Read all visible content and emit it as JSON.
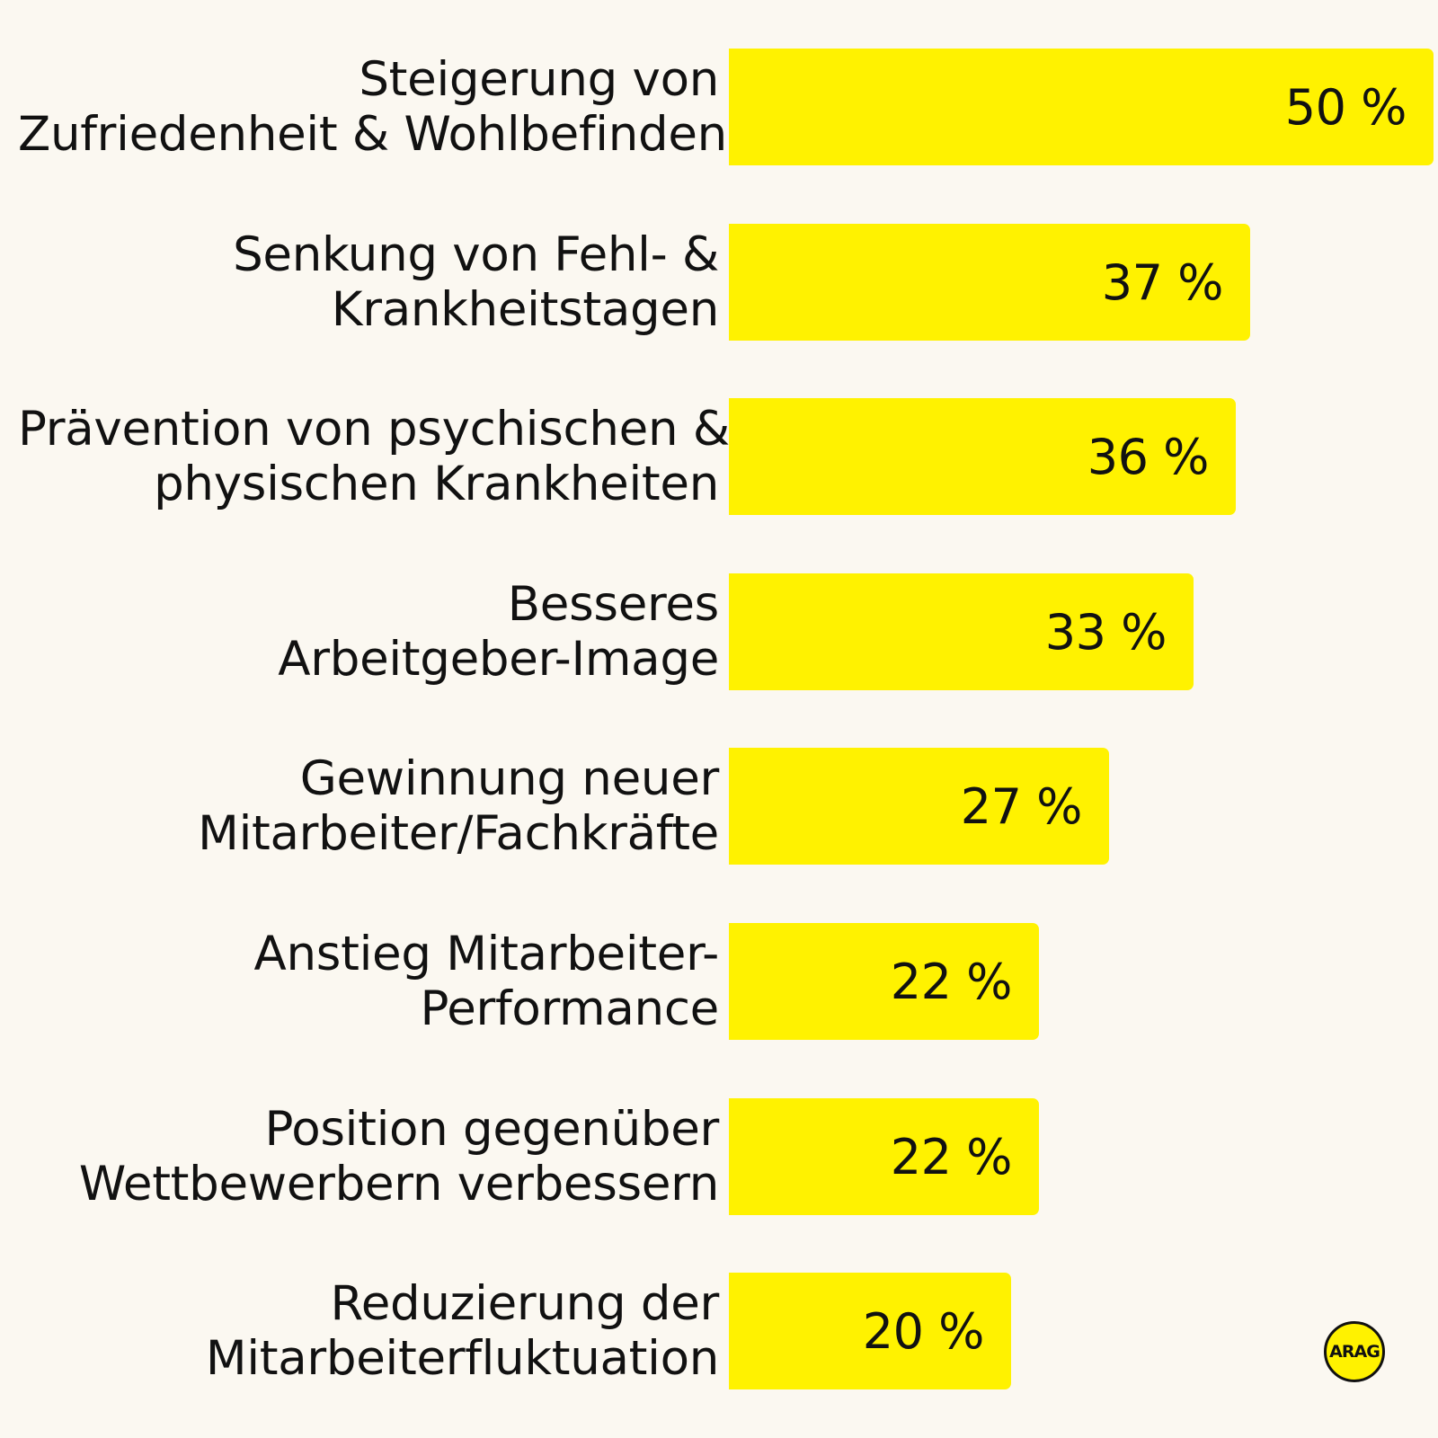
{
  "colors": {
    "background": "#fbf8f1",
    "bar": "#fff200",
    "text": "#111111",
    "logo_fill": "#fff200"
  },
  "logo": {
    "text": "ARAG"
  },
  "chart_data": {
    "type": "bar",
    "orientation": "horizontal",
    "unit": "%",
    "xlim": [
      0,
      50
    ],
    "grid": false,
    "legend": "none",
    "title": "",
    "xlabel": "",
    "ylabel": "",
    "categories": [
      [
        "Steigerung von",
        "Zufriedenheit & Wohlbefinden"
      ],
      [
        "Senkung von Fehl- &",
        "Krankheitstagen"
      ],
      [
        "Prävention von psychischen &",
        "physischen Krankheiten"
      ],
      [
        "Besseres",
        "Arbeitgeber-Image"
      ],
      [
        "Gewinnung neuer",
        "Mitarbeiter/Fachkräfte"
      ],
      [
        "Anstieg Mitarbeiter-",
        "Performance"
      ],
      [
        "Position gegenüber",
        "Wettbewerbern verbessern"
      ],
      [
        "Reduzierung der",
        "Mitarbeiterfluktuation"
      ]
    ],
    "values": [
      50,
      37,
      36,
      33,
      27,
      22,
      22,
      20
    ],
    "value_labels": [
      "50 %",
      "37 %",
      "36 %",
      "33 %",
      "27 %",
      "22 %",
      "22 %",
      "20 %"
    ]
  }
}
